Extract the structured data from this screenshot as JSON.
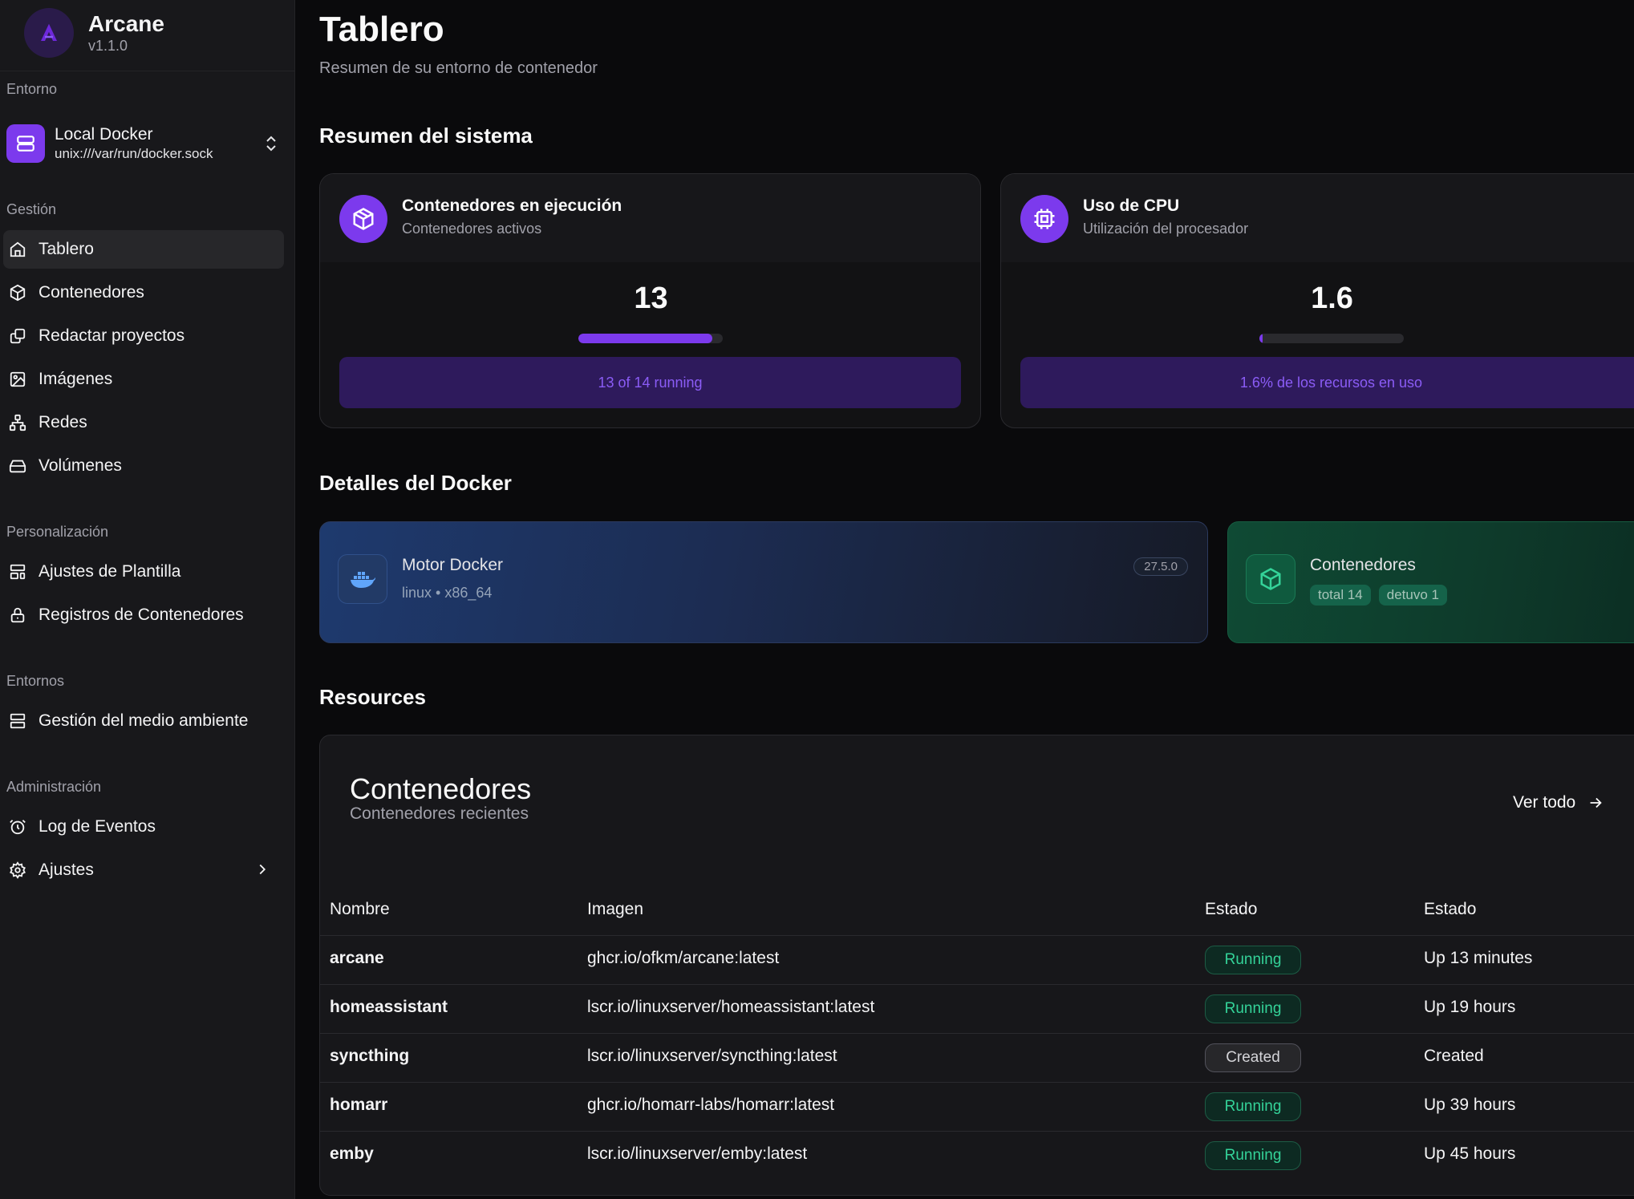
{
  "brand": {
    "name": "Arcane",
    "version": "v1.1.0"
  },
  "sidebar": {
    "environment_label": "Entorno",
    "environment": {
      "name": "Local Docker",
      "socket": "unix:///var/run/docker.sock"
    },
    "sections": {
      "management": "Gestión",
      "customization": "Personalización",
      "environments": "Entornos",
      "administration": "Administración"
    },
    "items": [
      {
        "label": "Tablero",
        "icon": "home-icon",
        "active": true
      },
      {
        "label": "Contenedores",
        "icon": "box-icon"
      },
      {
        "label": "Redactar proyectos",
        "icon": "copy-icon"
      },
      {
        "label": "Imágenes",
        "icon": "image-icon"
      },
      {
        "label": "Redes",
        "icon": "network-icon"
      },
      {
        "label": "Volúmenes",
        "icon": "hard-drive-icon"
      },
      {
        "label": "Ajustes de Plantilla",
        "icon": "layout-template-icon"
      },
      {
        "label": "Registros de Contenedores",
        "icon": "lock-icon"
      },
      {
        "label": "Gestión del medio ambiente",
        "icon": "server-icon"
      },
      {
        "label": "Log de Eventos",
        "icon": "alarm-clock-icon"
      },
      {
        "label": "Ajustes",
        "icon": "gear-icon"
      }
    ]
  },
  "header": {
    "title": "Tablero",
    "subtitle": "Resumen de su entorno de contenedor"
  },
  "system": {
    "title": "Resumen del sistema",
    "containers": {
      "title": "Contenedores en ejecución",
      "subtitle": "Contenedores activos",
      "value": "13",
      "progress": 0.93,
      "footer": "13 of 14 running"
    },
    "cpu": {
      "title": "Uso de CPU",
      "subtitle": "Utilización del procesador",
      "value": "1.6",
      "progress": 0.016,
      "footer": "1.6% de los recursos en uso"
    }
  },
  "docker": {
    "title": "Detalles del Docker",
    "engine": {
      "title": "Motor Docker",
      "subtitle": "linux • x86_64",
      "version": "27.5.0"
    },
    "containers": {
      "title": "Contenedores",
      "tags": [
        "total 14",
        "detuvo 1"
      ]
    }
  },
  "resources": {
    "title": "Resources",
    "card_title": "Contenedores",
    "card_subtitle": "Contenedores recientes",
    "view_all": "Ver todo",
    "columns": [
      "Nombre",
      "Imagen",
      "Estado",
      "Estado"
    ],
    "rows": [
      {
        "name": "arcane",
        "image": "ghcr.io/ofkm/arcane:latest",
        "status": "Running",
        "uptime": "Up 13 minutes"
      },
      {
        "name": "homeassistant",
        "image": "lscr.io/linuxserver/homeassistant:latest",
        "status": "Running",
        "uptime": "Up 19 hours"
      },
      {
        "name": "syncthing",
        "image": "lscr.io/linuxserver/syncthing:latest",
        "status": "Created",
        "uptime": "Created"
      },
      {
        "name": "homarr",
        "image": "ghcr.io/homarr-labs/homarr:latest",
        "status": "Running",
        "uptime": "Up 39 hours"
      },
      {
        "name": "emby",
        "image": "lscr.io/linuxserver/emby:latest",
        "status": "Running",
        "uptime": "Up 45 hours"
      }
    ]
  },
  "colors": {
    "accent": "#7c3aed",
    "running": "#34d399",
    "engine_card": "#1e3a6e",
    "containers_card": "#0f4a34"
  }
}
